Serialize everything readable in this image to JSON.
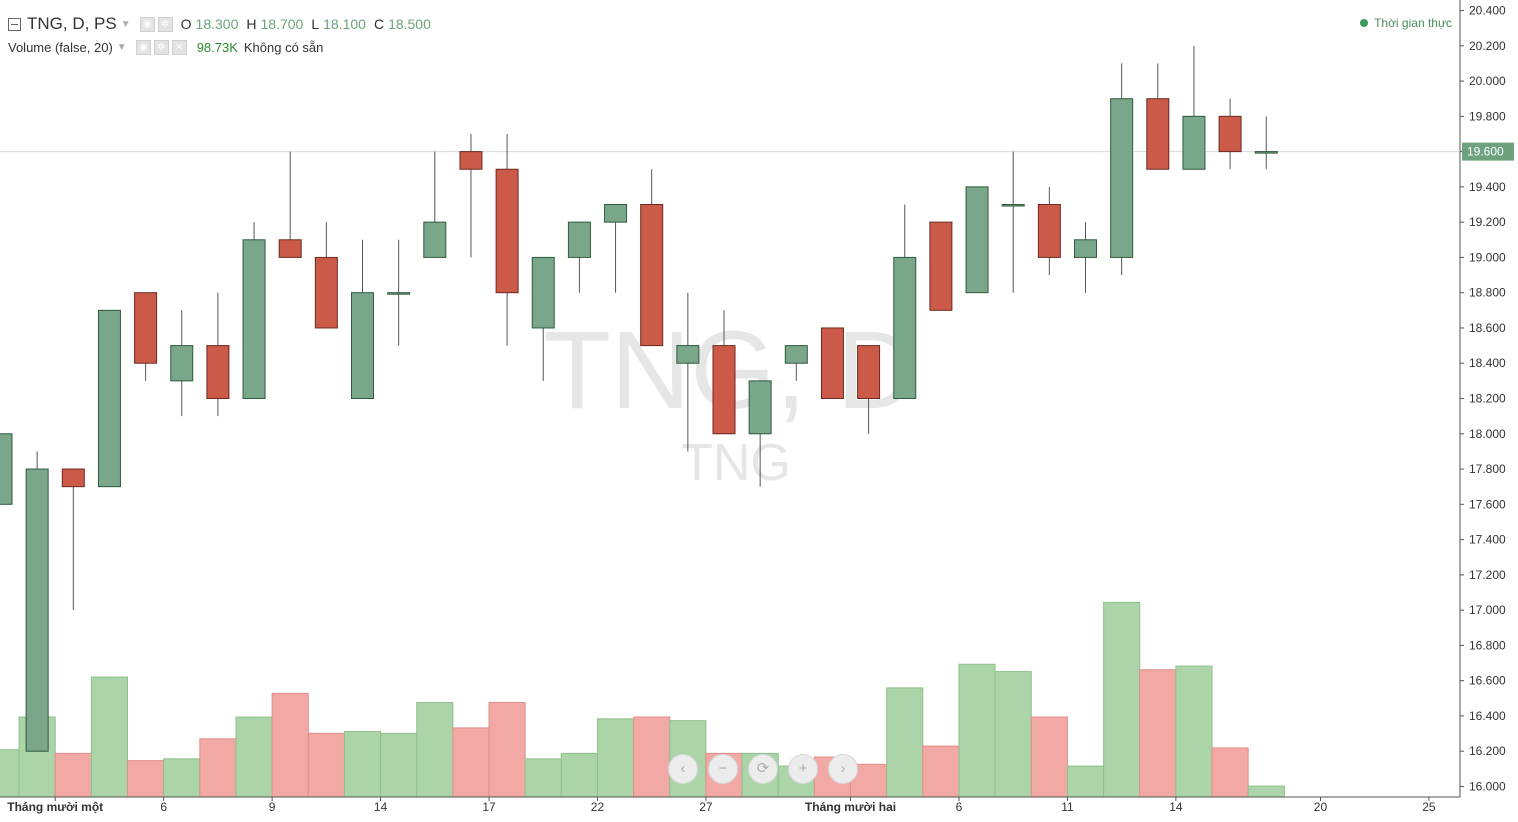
{
  "header": {
    "symbol": "TNG, D, PS",
    "open_label": "O",
    "open": "18.300",
    "high_label": "H",
    "high": "18.700",
    "low_label": "L",
    "low": "18.100",
    "close_label": "C",
    "close": "18.500",
    "volume_title": "Volume (false, 20)",
    "volume_value": "98.73K",
    "volume_na": "Không có sẵn"
  },
  "realtime_label": "Thời gian thực",
  "watermark": {
    "main": "TNG, D",
    "sub": "TNG"
  },
  "current_price_label": "19.600",
  "nav_buttons": [
    "‹",
    "−",
    "⟳",
    "+",
    "›"
  ],
  "colors": {
    "up": "#7aa68a",
    "down": "#cc5a48",
    "vol_up": "#abd4a8",
    "vol_down": "#f2a9a6"
  },
  "chart_data": {
    "type": "candlestick",
    "ylim": [
      15.98,
      20.42
    ],
    "y_ticks": [
      "20.400",
      "20.200",
      "20.000",
      "19.800",
      "19.600",
      "19.400",
      "19.200",
      "19.000",
      "18.800",
      "18.600",
      "18.400",
      "18.200",
      "18.000",
      "17.800",
      "17.600",
      "17.400",
      "17.200",
      "17.000",
      "16.800",
      "16.600",
      "16.400",
      "16.200",
      "16.000"
    ],
    "x_ticks": [
      {
        "idx": 1.5,
        "label": "Tháng mười một",
        "bold": true
      },
      {
        "idx": 4.5,
        "label": "6"
      },
      {
        "idx": 7.5,
        "label": "9"
      },
      {
        "idx": 10.5,
        "label": "14"
      },
      {
        "idx": 13.5,
        "label": "17"
      },
      {
        "idx": 16.5,
        "label": "22"
      },
      {
        "idx": 19.5,
        "label": "27"
      },
      {
        "idx": 23.5,
        "label": "Tháng mười hai",
        "bold": true
      },
      {
        "idx": 26.5,
        "label": "6"
      },
      {
        "idx": 29.5,
        "label": "11"
      },
      {
        "idx": 32.5,
        "label": "14"
      },
      {
        "idx": 36.5,
        "label": "20"
      },
      {
        "idx": 39.5,
        "label": "25"
      }
    ],
    "candles": [
      {
        "o": 17.6,
        "h": 18.0,
        "l": 17.6,
        "c": 18.0,
        "v": 0.26
      },
      {
        "o": 16.2,
        "h": 17.9,
        "l": 16.2,
        "c": 17.8,
        "v": 0.44
      },
      {
        "o": 17.8,
        "h": 17.8,
        "l": 17.0,
        "c": 17.7,
        "v": 0.24
      },
      {
        "o": 17.7,
        "h": 18.7,
        "l": 17.7,
        "c": 18.7,
        "v": 0.66
      },
      {
        "o": 18.8,
        "h": 18.8,
        "l": 18.3,
        "c": 18.4,
        "v": 0.2
      },
      {
        "o": 18.3,
        "h": 18.7,
        "l": 18.1,
        "c": 18.5,
        "v": 0.21
      },
      {
        "o": 18.5,
        "h": 18.8,
        "l": 18.1,
        "c": 18.2,
        "v": 0.32
      },
      {
        "o": 18.2,
        "h": 19.2,
        "l": 18.2,
        "c": 19.1,
        "v": 0.44
      },
      {
        "o": 19.1,
        "h": 19.6,
        "l": 19.0,
        "c": 19.0,
        "v": 0.57
      },
      {
        "o": 19.0,
        "h": 19.2,
        "l": 18.6,
        "c": 18.6,
        "v": 0.35
      },
      {
        "o": 18.2,
        "h": 19.1,
        "l": 18.2,
        "c": 18.8,
        "v": 0.36
      },
      {
        "o": 18.8,
        "h": 19.1,
        "l": 18.5,
        "c": 18.8,
        "v": 0.35
      },
      {
        "o": 19.0,
        "h": 19.6,
        "l": 19.0,
        "c": 19.2,
        "v": 0.52
      },
      {
        "o": 19.6,
        "h": 19.7,
        "l": 19.0,
        "c": 19.5,
        "v": 0.38
      },
      {
        "o": 19.5,
        "h": 19.7,
        "l": 18.5,
        "c": 18.8,
        "v": 0.52
      },
      {
        "o": 18.6,
        "h": 19.0,
        "l": 18.3,
        "c": 19.0,
        "v": 0.21
      },
      {
        "o": 19.0,
        "h": 19.2,
        "l": 18.8,
        "c": 19.2,
        "v": 0.24
      },
      {
        "o": 19.2,
        "h": 19.3,
        "l": 18.8,
        "c": 19.3,
        "v": 0.43
      },
      {
        "o": 19.3,
        "h": 19.5,
        "l": 18.5,
        "c": 18.5,
        "v": 0.44
      },
      {
        "o": 18.4,
        "h": 18.8,
        "l": 17.9,
        "c": 18.5,
        "v": 0.42
      },
      {
        "o": 18.5,
        "h": 18.7,
        "l": 18.0,
        "c": 18.0,
        "v": 0.24
      },
      {
        "o": 18.0,
        "h": 18.3,
        "l": 17.7,
        "c": 18.3,
        "v": 0.24
      },
      {
        "o": 18.4,
        "h": 18.5,
        "l": 18.3,
        "c": 18.5,
        "v": 0.17
      },
      {
        "o": 18.6,
        "h": 18.6,
        "l": 18.2,
        "c": 18.2,
        "v": 0.22
      },
      {
        "o": 18.5,
        "h": 18.5,
        "l": 18.0,
        "c": 18.2,
        "v": 0.18
      },
      {
        "o": 18.2,
        "h": 19.3,
        "l": 18.2,
        "c": 19.0,
        "v": 0.6
      },
      {
        "o": 19.2,
        "h": 19.2,
        "l": 18.7,
        "c": 18.7,
        "v": 0.28
      },
      {
        "o": 18.8,
        "h": 19.4,
        "l": 18.8,
        "c": 19.4,
        "v": 0.73
      },
      {
        "o": 19.3,
        "h": 19.6,
        "l": 18.8,
        "c": 19.3,
        "v": 0.69
      },
      {
        "o": 19.3,
        "h": 19.4,
        "l": 18.9,
        "c": 19.0,
        "v": 0.44
      },
      {
        "o": 19.0,
        "h": 19.2,
        "l": 18.8,
        "c": 19.1,
        "v": 0.17
      },
      {
        "o": 19.0,
        "h": 20.1,
        "l": 18.9,
        "c": 19.9,
        "v": 1.07
      },
      {
        "o": 19.9,
        "h": 20.1,
        "l": 19.5,
        "c": 19.5,
        "v": 0.7
      },
      {
        "o": 19.5,
        "h": 20.2,
        "l": 19.5,
        "c": 19.8,
        "v": 0.72
      },
      {
        "o": 19.8,
        "h": 19.9,
        "l": 19.5,
        "c": 19.6,
        "v": 0.27
      },
      {
        "o": 19.6,
        "h": 19.8,
        "l": 19.5,
        "c": 19.6,
        "v": 0.06
      }
    ]
  }
}
